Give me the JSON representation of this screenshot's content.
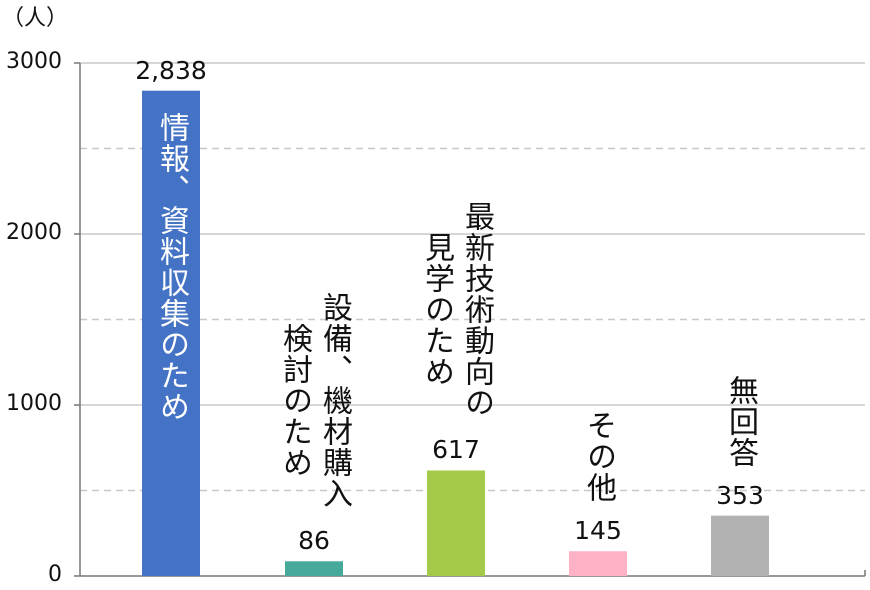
{
  "chart_data": {
    "type": "bar",
    "ylabel": "（人）",
    "ylim": [
      0,
      3000
    ],
    "yticks": [
      "0",
      "1000",
      "2000",
      "3000"
    ],
    "grid": "horizontal, dashed at half steps",
    "categories": [
      {
        "lines": [
          "情報、資料収集のため"
        ]
      },
      {
        "lines": [
          "設備、機材購入",
          "検討のため"
        ]
      },
      {
        "lines": [
          "最新技術動向の",
          "見学のため"
        ]
      },
      {
        "lines": [
          "その他"
        ]
      },
      {
        "lines": [
          "無回答"
        ]
      }
    ],
    "values": [
      2838,
      86,
      617,
      145,
      353
    ],
    "value_labels": [
      "2,838",
      "86",
      "617",
      "145",
      "353"
    ],
    "colors": [
      "#4472c4",
      "#46a99a",
      "#a5c948",
      "#ffb2c5",
      "#b2b2b2"
    ]
  }
}
